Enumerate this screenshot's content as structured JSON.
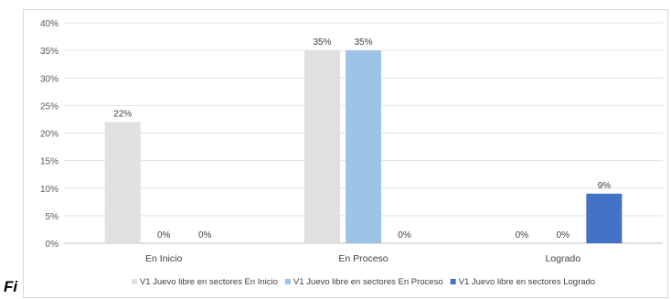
{
  "caption_fragment": "Fi",
  "chart_data": {
    "type": "bar",
    "title": "",
    "xlabel": "",
    "ylabel": "",
    "categories": [
      "En Inicio",
      "En Proceso",
      "Logrado"
    ],
    "series": [
      {
        "name": "V1 Juevo libre en sectores En Inicio",
        "values": [
          22,
          35,
          0
        ],
        "labels": [
          "22%",
          "35%",
          "0%"
        ],
        "color": "#e0e0e0"
      },
      {
        "name": "V1 Juevo libre en sectores En Proceso",
        "values": [
          0,
          35,
          0
        ],
        "labels": [
          "0%",
          "35%",
          "0%"
        ],
        "color": "#9dc3e6"
      },
      {
        "name": "V1 Juevo libre en sectores Logrado",
        "values": [
          0,
          0,
          9
        ],
        "labels": [
          "0%",
          "0%",
          "9%"
        ],
        "color": "#4472c4"
      }
    ],
    "ylim": [
      0,
      40
    ],
    "yticks": [
      "0%",
      "5%",
      "10%",
      "15%",
      "20%",
      "25%",
      "30%",
      "35%",
      "40%"
    ],
    "grid": true,
    "legend_position": "bottom",
    "value_format": "percent"
  }
}
